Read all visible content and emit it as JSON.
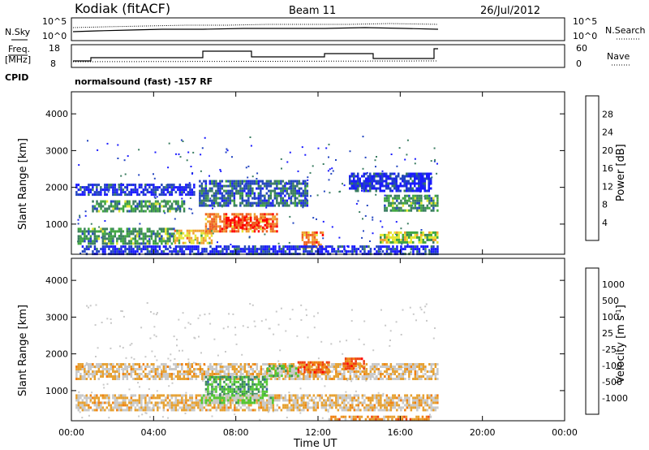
{
  "header": {
    "station": "Kodiak (fitACF)",
    "beam": "Beam 11",
    "date": "26/Jul/2012"
  },
  "strips": {
    "nsky_label": "N.Sky",
    "nsearch_label": "N.Search",
    "nsky_ticks": [
      "10^5",
      "10^0"
    ],
    "freq_label_1": "Freq.",
    "freq_label_2": "[MHz]",
    "freq_ticks": [
      "18",
      "8"
    ],
    "nave_label": "Nave",
    "nave_ticks": [
      "60",
      "0"
    ],
    "cpid_label": "CPID",
    "cpid_text": "normalsound (fast) -157 RF"
  },
  "axes": {
    "x_label": "Time UT",
    "x_ticks": [
      "00:00",
      "04:00",
      "08:00",
      "12:00",
      "16:00",
      "20:00",
      "00:00"
    ],
    "y_label": "Slant Range [km]",
    "y_ticks": [
      "1000",
      "2000",
      "3000",
      "4000"
    ],
    "y_range_km": [
      180,
      4600
    ],
    "x_range_hours": [
      0,
      24
    ]
  },
  "chart_data": [
    {
      "type": "heatmap",
      "panel": "power",
      "colorbar_label": "Power [dB]",
      "colorbar_ticks": [
        "28",
        "24",
        "20",
        "16",
        "12",
        "8",
        "4"
      ],
      "colors": [
        "#1a1aff",
        "#2244c0",
        "#3a7d60",
        "#3fa63f",
        "#e6e633",
        "#f0a030",
        "#f06020",
        "#ff0000"
      ],
      "blobs": [
        {
          "t0": 1.0,
          "t1": 5.5,
          "r0": 1350,
          "r1": 1650,
          "level": 3
        },
        {
          "t0": 0.3,
          "t1": 5.0,
          "r0": 500,
          "r1": 900,
          "level": 3
        },
        {
          "t0": 5.0,
          "t1": 6.8,
          "r0": 500,
          "r1": 850,
          "level": 5
        },
        {
          "t0": 6.5,
          "t1": 10.0,
          "r0": 800,
          "r1": 1300,
          "level": 6
        },
        {
          "t0": 7.5,
          "t1": 9.5,
          "r0": 900,
          "r1": 1200,
          "level": 7
        },
        {
          "t0": 11.2,
          "t1": 12.2,
          "r0": 400,
          "r1": 800,
          "level": 6
        },
        {
          "t0": 15.0,
          "t1": 17.8,
          "r0": 500,
          "r1": 800,
          "level": 4
        },
        {
          "t0": 15.2,
          "t1": 17.8,
          "r0": 1400,
          "r1": 1800,
          "level": 3
        },
        {
          "t0": 0.2,
          "t1": 6.0,
          "r0": 1800,
          "r1": 2100,
          "level": 1
        },
        {
          "t0": 6.2,
          "t1": 11.5,
          "r0": 1500,
          "r1": 2200,
          "level": 2
        },
        {
          "t0": 0.5,
          "t1": 17.8,
          "r0": 200,
          "r1": 420,
          "level": 1
        },
        {
          "t0": 13.5,
          "t1": 17.5,
          "r0": 1900,
          "r1": 2400,
          "level": 1
        }
      ]
    },
    {
      "type": "heatmap",
      "panel": "velocity",
      "colorbar_label": "Velocity [m s^-1]",
      "colorbar_ticks": [
        "1000",
        "500",
        "100",
        "25",
        "-25",
        "-100",
        "-500",
        "-1000"
      ],
      "colors": [
        "#ff0000",
        "#f04010",
        "#f08010",
        "#e6a030",
        "#c8c8c8",
        "#c8c8c8",
        "#50c830",
        "#3a8a5a",
        "#2a60a0",
        "#1a1aff"
      ],
      "blobs": [
        {
          "t0": 0.2,
          "t1": 17.8,
          "r0": 1350,
          "r1": 1750,
          "level": 4
        },
        {
          "t0": 0.2,
          "t1": 17.8,
          "r0": 500,
          "r1": 900,
          "level": 4
        },
        {
          "t0": 6.5,
          "t1": 9.5,
          "r0": 900,
          "r1": 1400,
          "level": 7
        },
        {
          "t0": 6.3,
          "t1": 9.8,
          "r0": 650,
          "r1": 900,
          "level": 6
        },
        {
          "t0": 9.5,
          "t1": 11.0,
          "r0": 1400,
          "r1": 1700,
          "level": 6
        },
        {
          "t0": 11.0,
          "t1": 12.5,
          "r0": 1500,
          "r1": 1800,
          "level": 2
        },
        {
          "t0": 13.2,
          "t1": 14.2,
          "r0": 1600,
          "r1": 1900,
          "level": 2
        },
        {
          "t0": 12.5,
          "t1": 17.5,
          "r0": 200,
          "r1": 320,
          "level": 3
        }
      ]
    }
  ]
}
